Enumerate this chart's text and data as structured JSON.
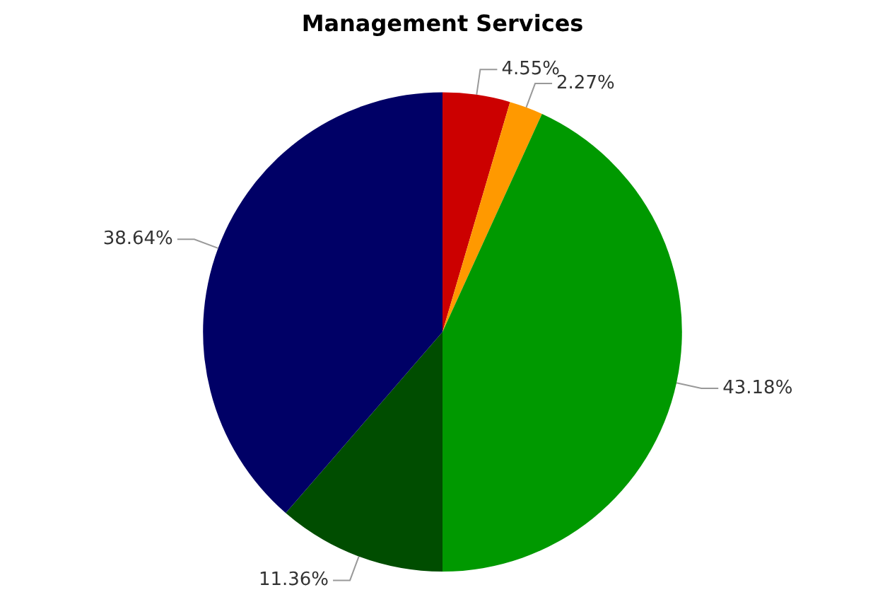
{
  "chart_data": {
    "type": "pie",
    "title": "Management Services",
    "categories": [
      null,
      null,
      null,
      null,
      null
    ],
    "values": [
      4.55,
      2.27,
      43.18,
      11.36,
      38.64
    ],
    "colors": [
      "#cc0000",
      "#ff9900",
      "#009900",
      "#004d00",
      "#000066"
    ],
    "value_labels": [
      "4.55%",
      "2.27%",
      "43.18%",
      "11.36%",
      "38.64%"
    ],
    "legend": false
  }
}
